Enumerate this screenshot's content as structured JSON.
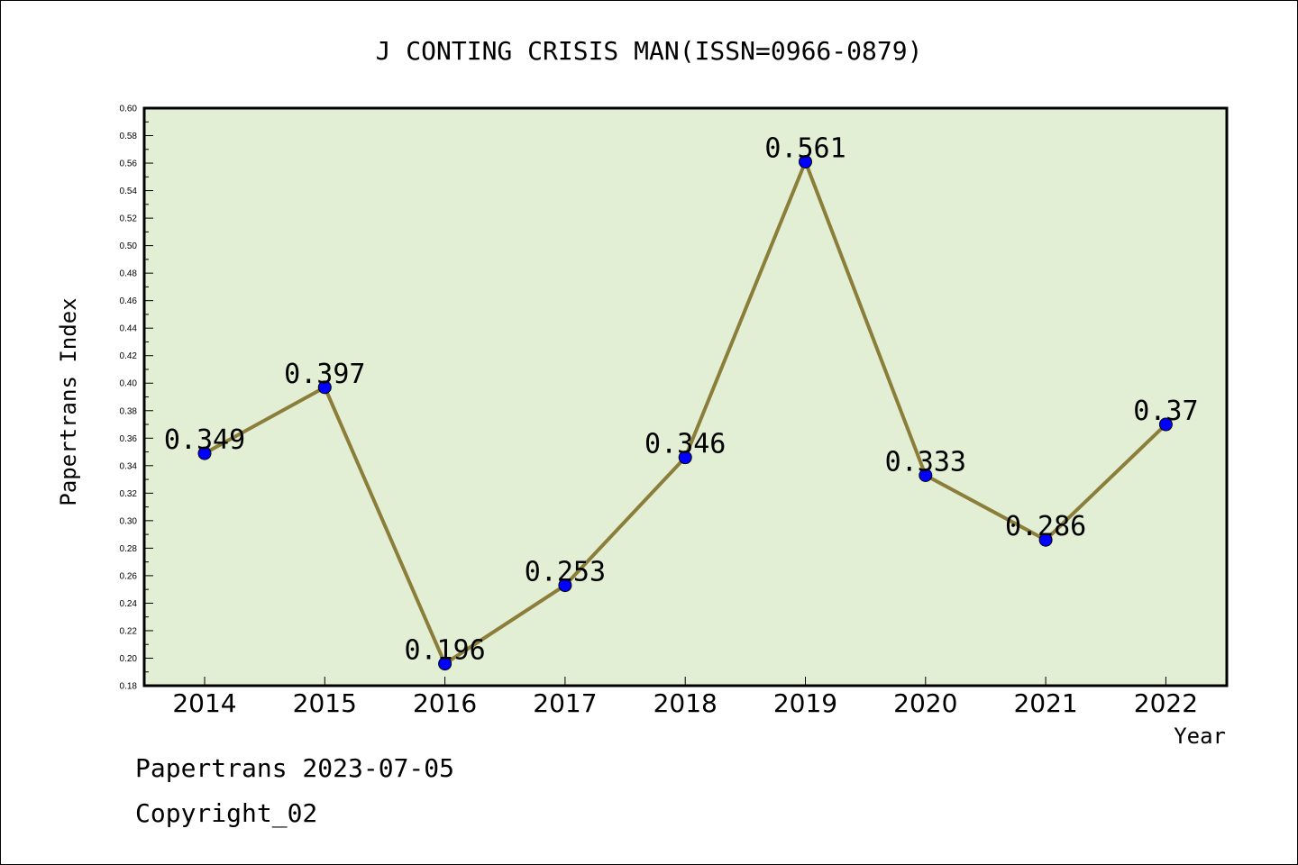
{
  "chart_data": {
    "type": "line",
    "title": "J CONTING CRISIS MAN(ISSN=0966-0879)",
    "xlabel": "Year",
    "ylabel": "Papertrans Index",
    "categories": [
      "2014",
      "2015",
      "2016",
      "2017",
      "2018",
      "2019",
      "2020",
      "2021",
      "2022"
    ],
    "series": [
      {
        "values": [
          0.349,
          0.397,
          0.196,
          0.253,
          0.346,
          0.561,
          0.333,
          0.286,
          0.37
        ],
        "data_labels": [
          "0.349",
          "0.397",
          "0.196",
          "0.253",
          "0.346",
          "0.561",
          "0.333",
          "0.286",
          "0.37"
        ]
      }
    ],
    "ylim": [
      0.18,
      0.6
    ],
    "yticks": [
      "0.18",
      "0.20",
      "0.22",
      "0.24",
      "0.26",
      "0.28",
      "0.30",
      "0.32",
      "0.34",
      "0.36",
      "0.38",
      "0.40",
      "0.42",
      "0.44",
      "0.46",
      "0.48",
      "0.50",
      "0.52",
      "0.54",
      "0.56",
      "0.58",
      "0.60"
    ],
    "grid": false,
    "legend": "none",
    "colors": {
      "plot_background": "#e2efd5",
      "line": "#8b7d3a",
      "marker": "#0000ff"
    }
  },
  "footer": {
    "date_line": "Papertrans 2023-07-05",
    "copyright": "Copyright_02"
  }
}
